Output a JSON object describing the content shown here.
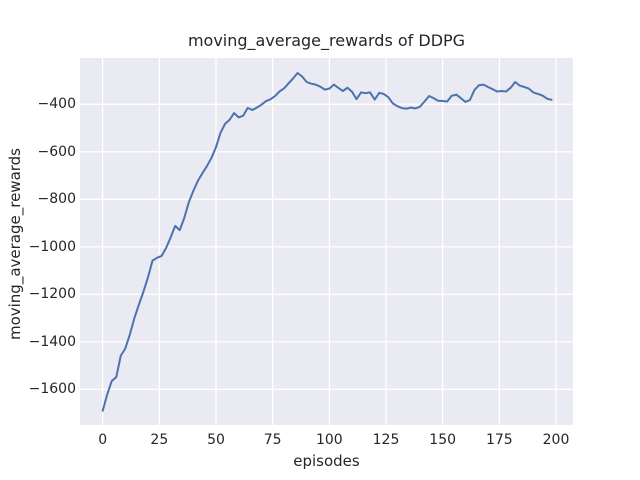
{
  "chart_data": {
    "type": "line",
    "title": "moving_average_rewards of DDPG",
    "xlabel": "episodes",
    "ylabel": "moving_average_rewards",
    "grid": true,
    "legend": false,
    "axes_background": "#EAEAF2",
    "grid_color": "#FFFFFF",
    "text_color": "#262626",
    "xlim": [
      -10,
      207.5
    ],
    "ylim": [
      -1750,
      -205
    ],
    "xticks": {
      "values": [
        0,
        25,
        50,
        75,
        100,
        125,
        150,
        175,
        200
      ],
      "labels": [
        "0",
        "25",
        "50",
        "75",
        "100",
        "125",
        "150",
        "175",
        "200"
      ]
    },
    "yticks": {
      "values": [
        -400,
        -600,
        -800,
        -1000,
        -1200,
        -1400,
        -1600
      ],
      "labels": [
        "−400",
        "−600",
        "−800",
        "−1000",
        "−1200",
        "−1400",
        "−1600"
      ]
    },
    "series": [
      {
        "name": "moving_average_rewards",
        "color": "#4C72B0",
        "x": [
          0,
          2,
          4,
          6,
          8,
          10,
          12,
          14,
          16,
          18,
          20,
          22,
          24,
          26,
          28,
          30,
          32,
          34,
          36,
          38,
          40,
          42,
          44,
          46,
          48,
          50,
          52,
          54,
          56,
          58,
          60,
          62,
          64,
          66,
          68,
          70,
          72,
          74,
          76,
          78,
          80,
          82,
          84,
          86,
          88,
          90,
          92,
          94,
          96,
          98,
          100,
          102,
          104,
          106,
          108,
          110,
          112,
          114,
          116,
          118,
          120,
          122,
          124,
          126,
          128,
          130,
          132,
          134,
          136,
          138,
          140,
          142,
          144,
          146,
          148,
          150,
          152,
          154,
          156,
          158,
          160,
          162,
          164,
          166,
          168,
          170,
          172,
          174,
          176,
          178,
          180,
          182,
          184,
          186,
          188,
          190,
          192,
          194,
          196,
          198
        ],
        "y": [
          -1690,
          -1622,
          -1565,
          -1548,
          -1458,
          -1428,
          -1368,
          -1300,
          -1243,
          -1188,
          -1128,
          -1058,
          -1046,
          -1038,
          -1005,
          -960,
          -912,
          -930,
          -878,
          -812,
          -765,
          -722,
          -690,
          -660,
          -625,
          -580,
          -520,
          -482,
          -465,
          -437,
          -455,
          -448,
          -415,
          -424,
          -414,
          -402,
          -387,
          -379,
          -366,
          -346,
          -333,
          -312,
          -291,
          -268,
          -283,
          -306,
          -313,
          -317,
          -326,
          -338,
          -334,
          -317,
          -331,
          -344,
          -330,
          -347,
          -378,
          -350,
          -353,
          -350,
          -380,
          -352,
          -356,
          -370,
          -396,
          -408,
          -416,
          -418,
          -414,
          -417,
          -410,
          -388,
          -365,
          -374,
          -385,
          -386,
          -388,
          -364,
          -359,
          -374,
          -390,
          -382,
          -340,
          -320,
          -317,
          -327,
          -336,
          -346,
          -344,
          -346,
          -330,
          -306,
          -321,
          -327,
          -334,
          -350,
          -356,
          -363,
          -376,
          -381
        ]
      }
    ]
  }
}
